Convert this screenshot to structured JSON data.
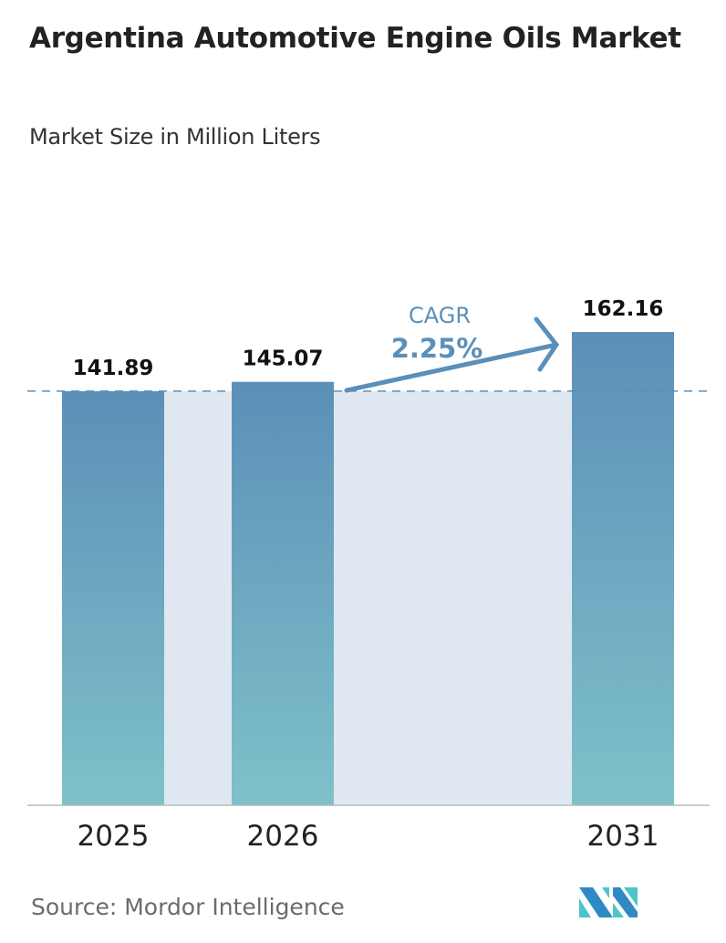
{
  "title": "Argentina Automotive Engine Oils Market",
  "subtitle": "Market Size in Million Liters",
  "source": "Source:  Mordor Intelligence",
  "logo_text": "MI",
  "colors": {
    "bar_top": "#5b8fb8",
    "bar_bottom": "#7fc1c9",
    "shade": "#dfe8f1",
    "cagr": "#5b8fb8"
  },
  "chart_data": {
    "type": "bar",
    "categories": [
      "2025",
      "2026",
      "2031"
    ],
    "values": [
      141.89,
      145.07,
      162.16
    ],
    "data_labels": [
      "141.89",
      "145.07",
      "162.16"
    ],
    "ylim": [
      0,
      162.16
    ],
    "grid": false,
    "annotation": {
      "label": "CAGR",
      "value": "2.25%"
    }
  }
}
